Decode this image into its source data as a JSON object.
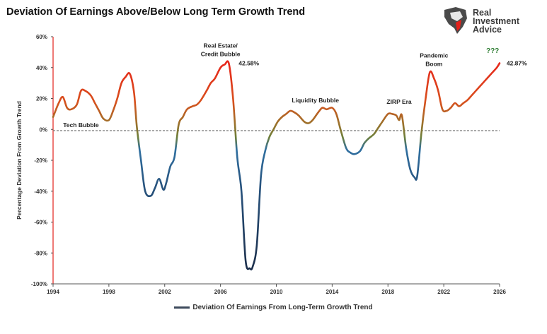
{
  "title": "Deviation Of Earnings Above/Below Long Term Growth Trend",
  "logo": {
    "line1": "Real",
    "line2": "Investment",
    "line3": "Advice"
  },
  "chart_data": {
    "type": "line",
    "ylabel": "Percentage Deviation From Growth Trend",
    "xlim": [
      1994,
      2026
    ],
    "ylim": [
      -100,
      60
    ],
    "x_ticks": [
      1994,
      1998,
      2002,
      2006,
      2010,
      2014,
      2018,
      2022,
      2026
    ],
    "y_ticks": [
      {
        "value": 60,
        "label": "60%"
      },
      {
        "value": 40,
        "label": "40%"
      },
      {
        "value": 20,
        "label": "20%"
      },
      {
        "value": 0,
        "label": "0%"
      },
      {
        "value": -20,
        "label": "-20%"
      },
      {
        "value": -40,
        "label": "-40%"
      },
      {
        "value": -60,
        "label": "-60%"
      },
      {
        "value": -80,
        "label": "-80%"
      },
      {
        "value": -100,
        "label": "-100%"
      }
    ],
    "grid": false,
    "legend": "bottom",
    "series": [
      {
        "name": "Deviation Of Earnings From Long-Term Growth Trend",
        "color_high": "#e3211b",
        "color_low": "#1b2e4b",
        "x": [
          1994.0,
          1994.4,
          1994.7,
          1995.0,
          1995.3,
          1995.7,
          1996.0,
          1996.3,
          1996.7,
          1997.0,
          1997.3,
          1997.6,
          1998.0,
          1998.3,
          1998.6,
          1998.9,
          1999.2,
          1999.5,
          1999.8,
          2000.0,
          2000.3,
          2000.6,
          2001.0,
          2001.3,
          2001.6,
          2001.9,
          2002.1,
          2002.4,
          2002.7,
          2003.0,
          2003.3,
          2003.6,
          2004.0,
          2004.3,
          2004.6,
          2005.0,
          2005.3,
          2005.6,
          2006.0,
          2006.3,
          2006.6,
          2006.9,
          2007.2,
          2007.5,
          2007.8,
          2008.1,
          2008.3,
          2008.6,
          2008.9,
          2009.2,
          2009.5,
          2009.8,
          2010.1,
          2010.4,
          2010.7,
          2011.0,
          2011.3,
          2011.6,
          2012.0,
          2012.3,
          2012.6,
          2013.0,
          2013.3,
          2013.6,
          2014.0,
          2014.3,
          2014.6,
          2015.0,
          2015.3,
          2015.6,
          2016.0,
          2016.3,
          2016.6,
          2017.0,
          2017.3,
          2017.6,
          2018.0,
          2018.3,
          2018.6,
          2018.8,
          2019.0,
          2019.3,
          2019.6,
          2019.9,
          2020.1,
          2020.4,
          2020.7,
          2021.0,
          2021.3,
          2021.6,
          2021.9,
          2022.2,
          2022.5,
          2022.8,
          2023.1,
          2023.4,
          2023.7,
          2024.0,
          2024.3,
          2024.6,
          2024.9,
          2025.2,
          2025.5,
          2025.8,
          2026.0
        ],
        "values": [
          8,
          17,
          21,
          14,
          13,
          16,
          25,
          25,
          22,
          17,
          12,
          7,
          6,
          12,
          20,
          30,
          34,
          36,
          24,
          2,
          -20,
          -40,
          -43,
          -38,
          -32,
          -39,
          -35,
          -24,
          -18,
          3,
          8,
          13,
          15,
          16,
          19,
          25,
          30,
          33,
          40,
          42,
          42.58,
          20,
          -18,
          -40,
          -85,
          -90,
          -89,
          -75,
          -30,
          -14,
          -5,
          0,
          5,
          8,
          10,
          12,
          11,
          9,
          5,
          4,
          6,
          11,
          14,
          13,
          14,
          10,
          0,
          -12,
          -15,
          -16,
          -14,
          -9,
          -6,
          -3,
          1,
          5,
          10,
          10,
          9,
          6,
          9,
          -12,
          -26,
          -31,
          -30,
          -2,
          20,
          37,
          33,
          25,
          13,
          12,
          14,
          17,
          15,
          17,
          19,
          22,
          25,
          28,
          31,
          34,
          37,
          40,
          42.87
        ]
      }
    ],
    "trend_line": {
      "value": -0.8
    },
    "annotations": [
      {
        "text": "Tech Bubble",
        "x": 1996.0,
        "y": 1.5
      },
      {
        "text": "Real Estate/",
        "x": 2006.0,
        "y": 53
      },
      {
        "text": "Credit Bubble",
        "x": 2006.0,
        "y": 47.5
      },
      {
        "text": "42.58%",
        "x": 2007.3,
        "y": 41.5
      },
      {
        "text": "Liquidity Bubble",
        "x": 2012.8,
        "y": 17.5
      },
      {
        "text": "ZIRP Era",
        "x": 2018.8,
        "y": 16.5
      },
      {
        "text": "Pandemic",
        "x": 2021.3,
        "y": 46.5
      },
      {
        "text": "Boom",
        "x": 2021.3,
        "y": 41
      },
      {
        "text": "???",
        "x": 2025.5,
        "y": 49.5
      },
      {
        "text": "42.87%",
        "x": 2026.5,
        "y": 41.5
      }
    ]
  }
}
